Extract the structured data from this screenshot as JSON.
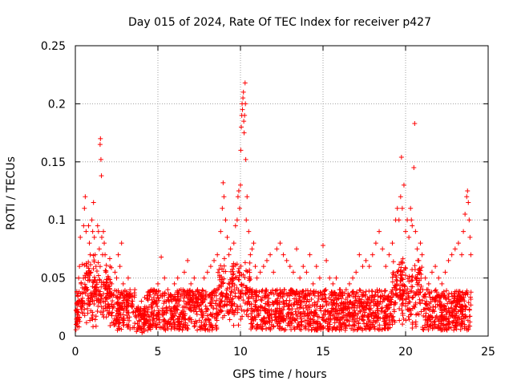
{
  "chart_data": {
    "type": "scatter",
    "title": "Day 015 of 2024, Rate Of TEC Index for receiver p427",
    "xlabel": "GPS time / hours",
    "ylabel": "ROTI / TECUs",
    "xlim": [
      0,
      25
    ],
    "ylim": [
      0,
      0.25
    ],
    "xticks": [
      0,
      5,
      10,
      15,
      20,
      25
    ],
    "yticks": [
      0,
      0.05,
      0.1,
      0.15,
      0.2,
      0.25
    ],
    "xtick_labels": [
      "0",
      "5",
      "10",
      "15",
      "20",
      "25"
    ],
    "ytick_labels": [
      "0",
      "0.05",
      "0.1",
      "0.15",
      "0.2",
      "0.25"
    ],
    "grid": true,
    "marker": "plus",
    "series": [
      {
        "name": "ROTI",
        "color": "#ff0000",
        "points": [
          [
            0.05,
            0.01
          ],
          [
            0.1,
            0.02
          ],
          [
            0.15,
            0.035
          ],
          [
            0.2,
            0.05
          ],
          [
            0.25,
            0.06
          ],
          [
            0.3,
            0.085
          ],
          [
            0.35,
            0.045
          ],
          [
            0.4,
            0.03
          ],
          [
            0.45,
            0.02
          ],
          [
            0.5,
            0.095
          ],
          [
            0.55,
            0.11
          ],
          [
            0.6,
            0.12
          ],
          [
            0.65,
            0.09
          ],
          [
            0.7,
            0.06
          ],
          [
            0.75,
            0.04
          ],
          [
            0.8,
            0.095
          ],
          [
            0.85,
            0.08
          ],
          [
            0.9,
            0.07
          ],
          [
            0.95,
            0.055
          ],
          [
            1.0,
            0.1
          ],
          [
            1.05,
            0.09
          ],
          [
            1.1,
            0.115
          ],
          [
            1.15,
            0.085
          ],
          [
            1.2,
            0.07
          ],
          [
            1.25,
            0.06
          ],
          [
            1.3,
            0.04
          ],
          [
            1.35,
            0.095
          ],
          [
            1.4,
            0.09
          ],
          [
            1.45,
            0.075
          ],
          [
            1.5,
            0.165
          ],
          [
            1.52,
            0.17
          ],
          [
            1.55,
            0.152
          ],
          [
            1.58,
            0.138
          ],
          [
            1.6,
            0.085
          ],
          [
            1.65,
            0.07
          ],
          [
            1.7,
            0.09
          ],
          [
            1.75,
            0.08
          ],
          [
            1.8,
            0.07
          ],
          [
            1.85,
            0.055
          ],
          [
            1.9,
            0.04
          ],
          [
            2.0,
            0.05
          ],
          [
            2.1,
            0.06
          ],
          [
            2.2,
            0.045
          ],
          [
            2.3,
            0.035
          ],
          [
            2.4,
            0.055
          ],
          [
            2.5,
            0.05
          ],
          [
            2.6,
            0.07
          ],
          [
            2.7,
            0.06
          ],
          [
            2.8,
            0.08
          ],
          [
            2.9,
            0.045
          ],
          [
            3.0,
            0.035
          ],
          [
            3.2,
            0.05
          ],
          [
            3.4,
            0.03
          ],
          [
            3.6,
            0.04
          ],
          [
            3.8,
            0.025
          ],
          [
            4.0,
            0.03
          ],
          [
            4.2,
            0.02
          ],
          [
            4.4,
            0.035
          ],
          [
            4.6,
            0.04
          ],
          [
            4.8,
            0.03
          ],
          [
            5.0,
            0.045
          ],
          [
            5.2,
            0.068
          ],
          [
            5.4,
            0.05
          ],
          [
            5.6,
            0.04
          ],
          [
            5.8,
            0.035
          ],
          [
            6.0,
            0.045
          ],
          [
            6.2,
            0.05
          ],
          [
            6.4,
            0.04
          ],
          [
            6.6,
            0.055
          ],
          [
            6.8,
            0.065
          ],
          [
            7.0,
            0.045
          ],
          [
            7.2,
            0.05
          ],
          [
            7.4,
            0.04
          ],
          [
            7.6,
            0.035
          ],
          [
            7.8,
            0.05
          ],
          [
            8.0,
            0.055
          ],
          [
            8.2,
            0.06
          ],
          [
            8.4,
            0.065
          ],
          [
            8.6,
            0.07
          ],
          [
            8.8,
            0.09
          ],
          [
            8.9,
            0.11
          ],
          [
            8.95,
            0.132
          ],
          [
            9.0,
            0.12
          ],
          [
            9.1,
            0.1
          ],
          [
            9.2,
            0.085
          ],
          [
            9.3,
            0.07
          ],
          [
            9.4,
            0.075
          ],
          [
            9.5,
            0.06
          ],
          [
            9.6,
            0.08
          ],
          [
            9.7,
            0.095
          ],
          [
            9.8,
            0.1
          ],
          [
            9.85,
            0.12
          ],
          [
            9.9,
            0.125
          ],
          [
            9.95,
            0.11
          ],
          [
            10.0,
            0.13
          ],
          [
            10.02,
            0.16
          ],
          [
            10.05,
            0.18
          ],
          [
            10.08,
            0.19
          ],
          [
            10.1,
            0.2
          ],
          [
            10.12,
            0.195
          ],
          [
            10.15,
            0.205
          ],
          [
            10.18,
            0.21
          ],
          [
            10.2,
            0.185
          ],
          [
            10.22,
            0.175
          ],
          [
            10.25,
            0.19
          ],
          [
            10.28,
            0.218
          ],
          [
            10.3,
            0.2
          ],
          [
            10.32,
            0.152
          ],
          [
            10.35,
            0.1
          ],
          [
            10.4,
            0.12
          ],
          [
            10.5,
            0.09
          ],
          [
            10.6,
            0.07
          ],
          [
            10.7,
            0.075
          ],
          [
            10.8,
            0.08
          ],
          [
            10.9,
            0.06
          ],
          [
            11.0,
            0.05
          ],
          [
            11.2,
            0.055
          ],
          [
            11.4,
            0.06
          ],
          [
            11.6,
            0.065
          ],
          [
            11.8,
            0.07
          ],
          [
            12.0,
            0.055
          ],
          [
            12.2,
            0.075
          ],
          [
            12.4,
            0.08
          ],
          [
            12.6,
            0.07
          ],
          [
            12.8,
            0.065
          ],
          [
            13.0,
            0.06
          ],
          [
            13.2,
            0.055
          ],
          [
            13.4,
            0.075
          ],
          [
            13.6,
            0.05
          ],
          [
            13.8,
            0.06
          ],
          [
            14.0,
            0.055
          ],
          [
            14.2,
            0.07
          ],
          [
            14.4,
            0.045
          ],
          [
            14.6,
            0.06
          ],
          [
            14.8,
            0.05
          ],
          [
            15.0,
            0.078
          ],
          [
            15.2,
            0.065
          ],
          [
            15.4,
            0.05
          ],
          [
            15.6,
            0.045
          ],
          [
            15.8,
            0.05
          ],
          [
            16.0,
            0.04
          ],
          [
            16.2,
            0.035
          ],
          [
            16.4,
            0.04
          ],
          [
            16.6,
            0.045
          ],
          [
            16.8,
            0.05
          ],
          [
            17.0,
            0.055
          ],
          [
            17.2,
            0.07
          ],
          [
            17.4,
            0.06
          ],
          [
            17.6,
            0.065
          ],
          [
            17.8,
            0.06
          ],
          [
            18.0,
            0.07
          ],
          [
            18.2,
            0.08
          ],
          [
            18.4,
            0.09
          ],
          [
            18.6,
            0.075
          ],
          [
            18.8,
            0.06
          ],
          [
            19.0,
            0.07
          ],
          [
            19.2,
            0.08
          ],
          [
            19.4,
            0.1
          ],
          [
            19.5,
            0.11
          ],
          [
            19.6,
            0.1
          ],
          [
            19.7,
            0.12
          ],
          [
            19.75,
            0.154
          ],
          [
            19.8,
            0.11
          ],
          [
            19.9,
            0.13
          ],
          [
            20.0,
            0.09
          ],
          [
            20.1,
            0.1
          ],
          [
            20.2,
            0.085
          ],
          [
            20.3,
            0.11
          ],
          [
            20.35,
            0.1
          ],
          [
            20.4,
            0.095
          ],
          [
            20.5,
            0.145
          ],
          [
            20.55,
            0.183
          ],
          [
            20.6,
            0.09
          ],
          [
            20.7,
            0.075
          ],
          [
            20.8,
            0.065
          ],
          [
            20.9,
            0.08
          ],
          [
            21.0,
            0.07
          ],
          [
            21.2,
            0.05
          ],
          [
            21.4,
            0.045
          ],
          [
            21.6,
            0.055
          ],
          [
            21.8,
            0.06
          ],
          [
            22.0,
            0.05
          ],
          [
            22.2,
            0.045
          ],
          [
            22.4,
            0.055
          ],
          [
            22.6,
            0.065
          ],
          [
            22.8,
            0.07
          ],
          [
            23.0,
            0.075
          ],
          [
            23.2,
            0.08
          ],
          [
            23.4,
            0.07
          ],
          [
            23.5,
            0.09
          ],
          [
            23.6,
            0.105
          ],
          [
            23.7,
            0.12
          ],
          [
            23.75,
            0.125
          ],
          [
            23.8,
            0.115
          ],
          [
            23.85,
            0.1
          ],
          [
            23.9,
            0.085
          ],
          [
            23.95,
            0.07
          ]
        ],
        "noise_band": [
          0.005,
          0.04
        ]
      }
    ]
  }
}
